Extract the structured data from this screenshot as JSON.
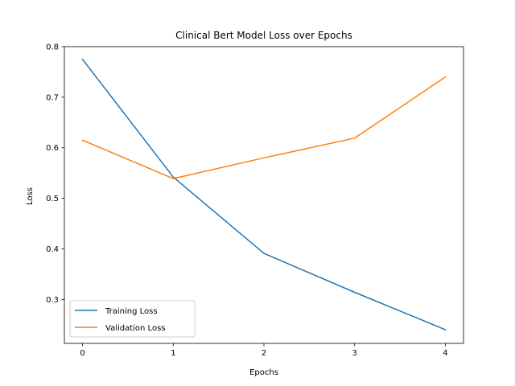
{
  "chart_data": {
    "type": "line",
    "title": "Clinical Bert Model Loss over Epochs",
    "xlabel": "Epochs",
    "ylabel": "Loss",
    "x": [
      0,
      1,
      2,
      3,
      4
    ],
    "xticks": [
      "0",
      "1",
      "2",
      "3",
      "4"
    ],
    "yticks": [
      "0.3",
      "0.4",
      "0.5",
      "0.6",
      "0.7",
      "0.8"
    ],
    "xlim": [
      -0.2,
      4.2
    ],
    "ylim": [
      0.213,
      0.8
    ],
    "grid": false,
    "legend_position": "lower-left",
    "series": [
      {
        "name": "Training Loss",
        "color": "#1f77b4",
        "values": [
          0.775,
          0.542,
          0.391,
          0.314,
          0.24
        ]
      },
      {
        "name": "Validation Loss",
        "color": "#ff7f0e",
        "values": [
          0.615,
          0.539,
          0.58,
          0.619,
          0.74
        ]
      }
    ]
  }
}
